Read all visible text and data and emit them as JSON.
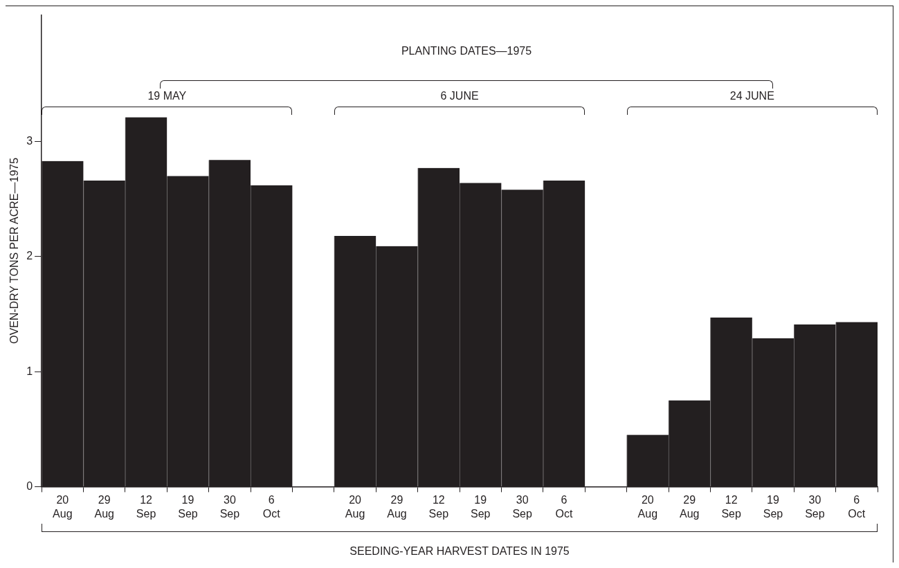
{
  "chart_data": {
    "type": "bar",
    "ylabel": "OVEN-DRY TONS PER ACRE—1975",
    "xlabel": "SEEDING-YEAR HARVEST DATES IN 1975",
    "annotations": [
      "PLANTING DATES—1975",
      "19 MAY",
      "6 JUNE",
      "24 JUNE"
    ],
    "categories": [
      "20 Aug",
      "29 Aug",
      "12 Sep",
      "19 Sep",
      "30 Sep",
      "6 Oct",
      null,
      "20 Aug",
      "29 Aug",
      "12 Sep",
      "19 Sep",
      "30 Sep",
      "6 Oct",
      null,
      "20 Aug",
      "29 Aug",
      "12 Sep",
      "19 Sep",
      "30 Sep",
      "6 Oct"
    ],
    "values": [
      2.83,
      2.66,
      3.21,
      2.7,
      2.84,
      2.62,
      null,
      2.18,
      2.09,
      2.77,
      2.64,
      2.58,
      2.66,
      null,
      0.45,
      0.75,
      1.47,
      1.29,
      1.41,
      1.43
    ],
    "color": "#231f20",
    "ylim": [
      0,
      4.1
    ],
    "yticks": [
      0,
      1,
      2,
      3
    ],
    "grid": false,
    "legend": false
  }
}
